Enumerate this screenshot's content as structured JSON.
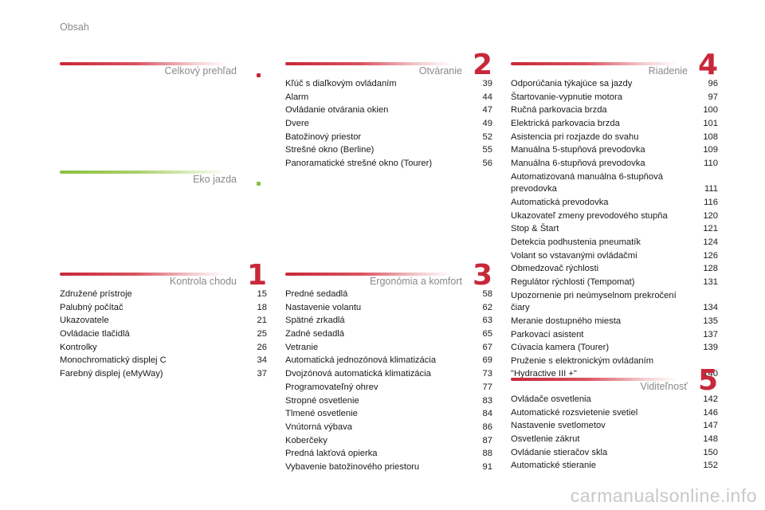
{
  "page_label": "Obsah",
  "sections": {
    "overview": {
      "title": "Celkový prehľad"
    },
    "eco": {
      "title": "Eko jazda"
    },
    "s1": {
      "number": "1",
      "title": "Kontrola chodu",
      "items": [
        {
          "t": "Združené prístroje",
          "p": "15"
        },
        {
          "t": "Palubný počítač",
          "p": "18"
        },
        {
          "t": "Ukazovatele",
          "p": "21"
        },
        {
          "t": "Ovládacie tlačidlá",
          "p": "25"
        },
        {
          "t": "Kontrolky",
          "p": "26"
        },
        {
          "t": "Monochromatický displej C",
          "p": "34"
        },
        {
          "t": "Farebný displej (eMyWay)",
          "p": "37"
        }
      ]
    },
    "s2": {
      "number": "2",
      "title": "Otváranie",
      "items": [
        {
          "t": "Kľúč s diaľkovým ovládaním",
          "p": "39"
        },
        {
          "t": "Alarm",
          "p": "44"
        },
        {
          "t": "Ovládanie otvárania okien",
          "p": "47"
        },
        {
          "t": "Dvere",
          "p": "49"
        },
        {
          "t": "Batožinový priestor",
          "p": "52"
        },
        {
          "t": "Strešné okno (Berline)",
          "p": "55"
        },
        {
          "t": "Panoramatické strešné okno (Tourer)",
          "p": "56"
        }
      ]
    },
    "s3": {
      "number": "3",
      "title": "Ergonómia a komfort",
      "items": [
        {
          "t": "Predné sedadlá",
          "p": "58"
        },
        {
          "t": "Nastavenie volantu",
          "p": "62"
        },
        {
          "t": "Spätné zrkadlá",
          "p": "63"
        },
        {
          "t": "Zadné sedadlá",
          "p": "65"
        },
        {
          "t": "Vetranie",
          "p": "67"
        },
        {
          "t": "Automatická jednozónová klimatizácia",
          "p": "69"
        },
        {
          "t": "Dvojzónová automatická klimatizácia",
          "p": "73"
        },
        {
          "t": "Programovateľný ohrev",
          "p": "77"
        },
        {
          "t": "Stropné osvetlenie",
          "p": "83"
        },
        {
          "t": "Tlmené osvetlenie",
          "p": "84"
        },
        {
          "t": "Vnútorná výbava",
          "p": "86"
        },
        {
          "t": "Koberčeky",
          "p": "87"
        },
        {
          "t": "Predná lakťová opierka",
          "p": "88"
        },
        {
          "t": "Vybavenie batožinového priestoru",
          "p": "91"
        }
      ]
    },
    "s4": {
      "number": "4",
      "title": "Riadenie",
      "items": [
        {
          "t": "Odporúčania týkajúce sa jazdy",
          "p": "96"
        },
        {
          "t": "Štartovanie-vypnutie motora",
          "p": "97"
        },
        {
          "t": "Ručná parkovacia brzda",
          "p": "100"
        },
        {
          "t": "Elektrická parkovacia brzda",
          "p": "101"
        },
        {
          "t": "Asistencia pri rozjazde do svahu",
          "p": "108"
        },
        {
          "t": "Manuálna 5-stupňová prevodovka",
          "p": "109"
        },
        {
          "t": "Manuálna 6-stupňová prevodovka",
          "p": "110"
        },
        {
          "t": "Automatizovaná manuálna 6-stupňová prevodovka",
          "p": "111"
        },
        {
          "t": "Automatická prevodovka",
          "p": "116"
        },
        {
          "t": "Ukazovateľ zmeny prevodového stupňa",
          "p": "120"
        },
        {
          "t": "Stop & Štart",
          "p": "121"
        },
        {
          "t": "Detekcia podhustenia pneumatík",
          "p": "124"
        },
        {
          "t": "Volant so vstavanými ovládačmi",
          "p": "126"
        },
        {
          "t": "Obmedzovač rýchlosti",
          "p": "128"
        },
        {
          "t": "Regulátor rýchlosti (Tempomat)",
          "p": "131"
        },
        {
          "t": "Upozornenie pri neúmyselnom prekročení čiary",
          "p": "134"
        },
        {
          "t": "Meranie dostupného miesta",
          "p": "135"
        },
        {
          "t": "Parkovací asistent",
          "p": "137"
        },
        {
          "t": "Cúvacia kamera (Tourer)",
          "p": "139"
        },
        {
          "t": "Pruženie s elektronickým ovládaním \"Hydractive III +\"",
          "p": "140"
        }
      ]
    },
    "s5": {
      "number": "5",
      "title": "Viditeľnosť",
      "items": [
        {
          "t": "Ovládače osvetlenia",
          "p": "142"
        },
        {
          "t": "Automatické rozsvietenie svetiel",
          "p": "146"
        },
        {
          "t": "Nastavenie svetlometov",
          "p": "147"
        },
        {
          "t": "Osvetlenie zákrut",
          "p": "148"
        },
        {
          "t": "Ovládanie stieračov skla",
          "p": "150"
        },
        {
          "t": "Automatické stieranie",
          "p": "152"
        }
      ]
    }
  },
  "watermark": "carmanualsonline.info",
  "colors": {
    "accent_red": "#c8283a",
    "accent_green": "#8cc040",
    "muted_text": "#8a8a8a"
  }
}
